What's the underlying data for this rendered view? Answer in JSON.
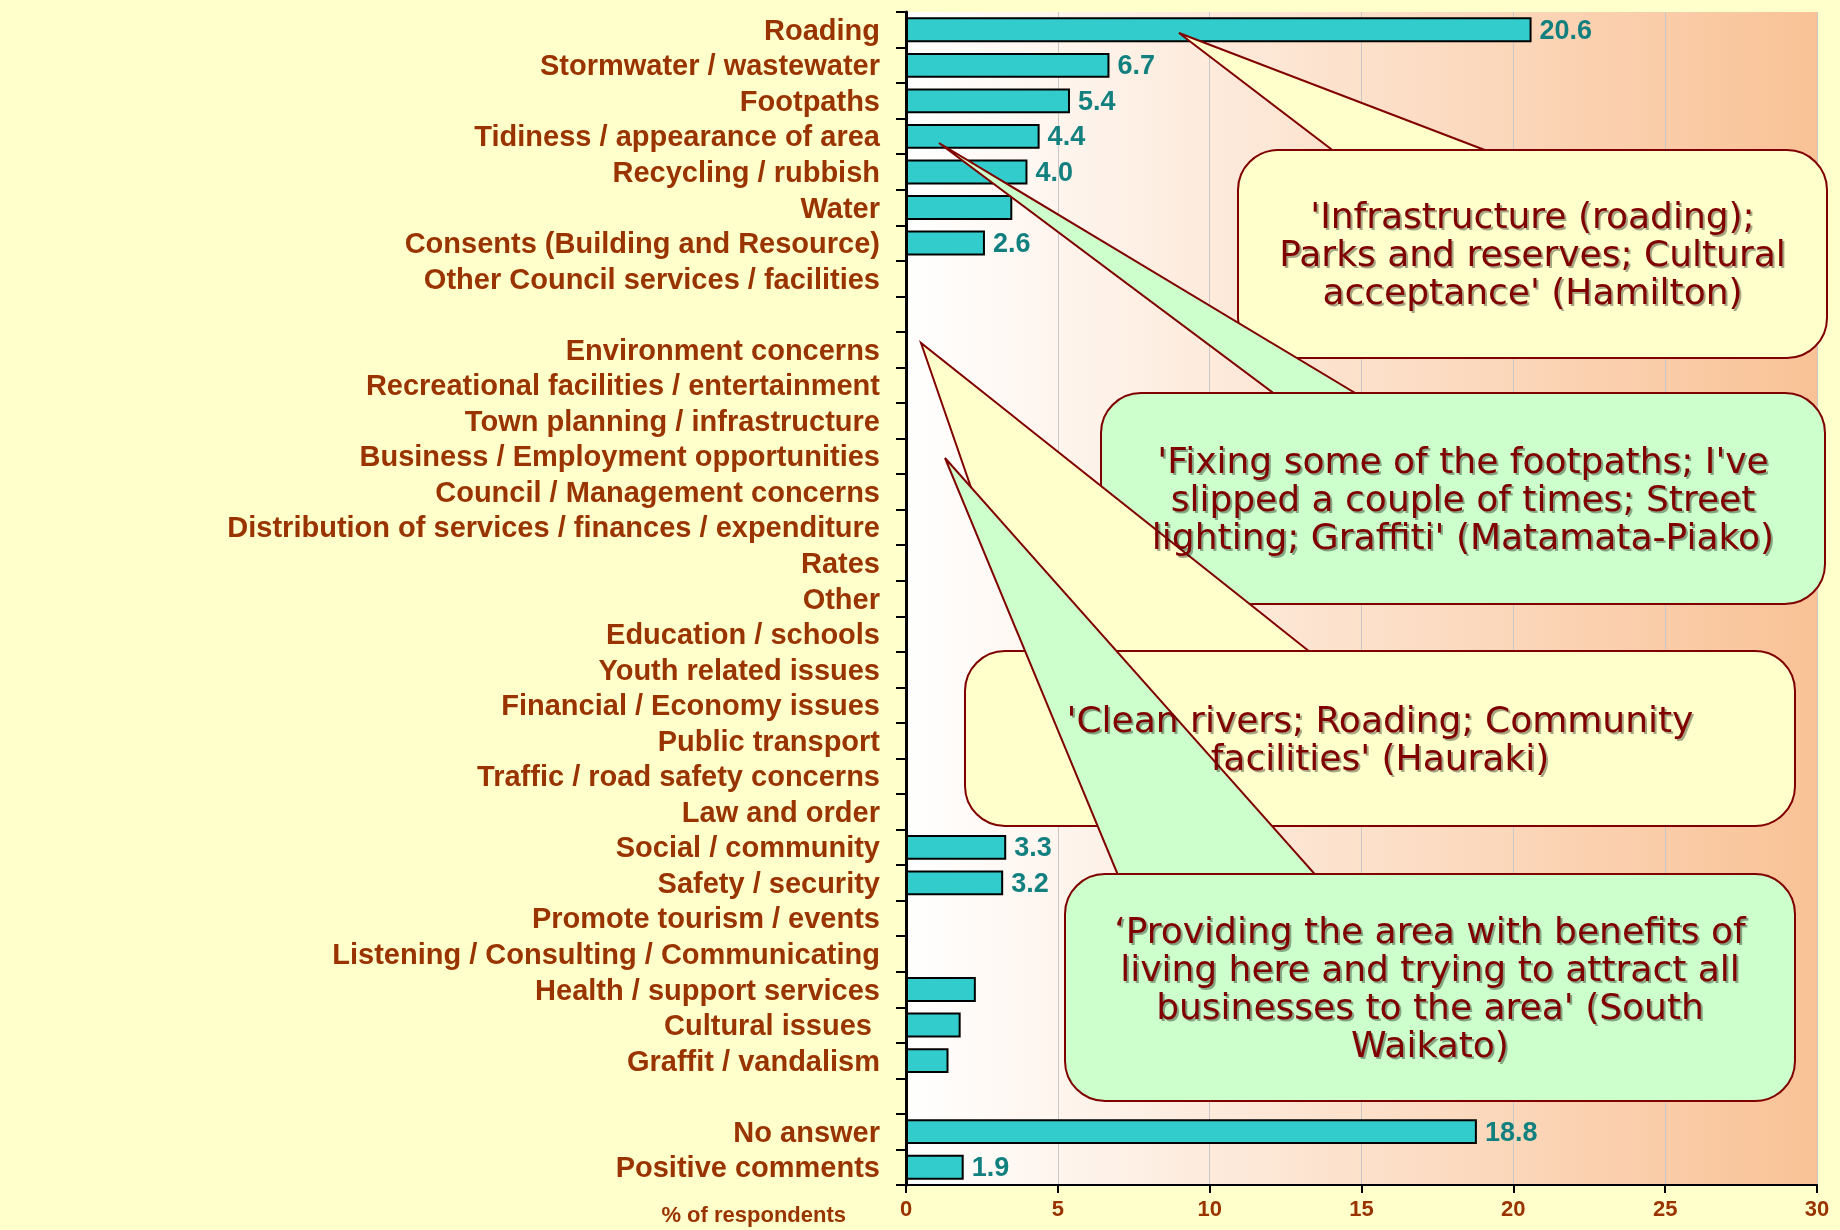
{
  "chart_data": {
    "type": "bar",
    "orientation": "horizontal",
    "xlabel": "% of respondents",
    "categories": [
      "Roading",
      "Stormwater / wastewater",
      "Footpaths",
      "Tidiness / appearance of area",
      "Recycling / rubbish",
      "Water",
      "Consents (Building and Resource)",
      "Other Council services / facilities",
      null,
      "Environment concerns",
      "Recreational facilities / entertainment",
      "Town planning / infrastructure",
      "Business / Employment opportunities",
      "Council / Management concerns",
      "Distribution of services / finances / expenditure",
      "Rates",
      "Other",
      "Education / schools",
      "Youth related issues",
      "Financial / Economy issues",
      "Public transport",
      "Traffic / road safety concerns",
      "Law and order",
      "Social / community",
      "Safety / security",
      "Promote tourism / events",
      "Listening / Consulting / Communicating",
      "Health / support services",
      "Cultural issues ",
      "Graffit / vandalism",
      null,
      "No answer",
      "Positive comments"
    ],
    "values": [
      20.6,
      6.7,
      5.4,
      4.4,
      4.0,
      3.5,
      2.6,
      null,
      null,
      null,
      null,
      null,
      null,
      null,
      null,
      null,
      null,
      null,
      null,
      null,
      null,
      null,
      null,
      3.3,
      3.2,
      null,
      null,
      2.3,
      1.8,
      1.4,
      null,
      18.8,
      1.9
    ],
    "value_labels": [
      "20.6",
      "6.7",
      "5.4",
      "4.4",
      "4.0",
      null,
      "2.6",
      null,
      null,
      null,
      null,
      null,
      null,
      null,
      null,
      null,
      null,
      null,
      null,
      null,
      null,
      null,
      null,
      "3.3",
      "3.2",
      null,
      null,
      null,
      null,
      null,
      null,
      "18.8",
      "1.9"
    ],
    "color": "#33cccc",
    "xlim": [
      0,
      30
    ],
    "xticks": [
      0,
      5,
      10,
      15,
      20,
      25,
      30
    ],
    "grid": "x",
    "annotations": [
      "'Infrastructure (roading); Parks and reserves; Cultural acceptance' (Hamilton)",
      "'Fixing some of the footpaths; I've slipped a couple of times; Street lighting; Graffiti' (Matamata-Piako)",
      "'Clean rivers; Roading; Community facilities' (Hauraki)",
      "‘Providing the area with benefits of living here and trying to attract all businesses to the area' (South Waikato)"
    ]
  }
}
